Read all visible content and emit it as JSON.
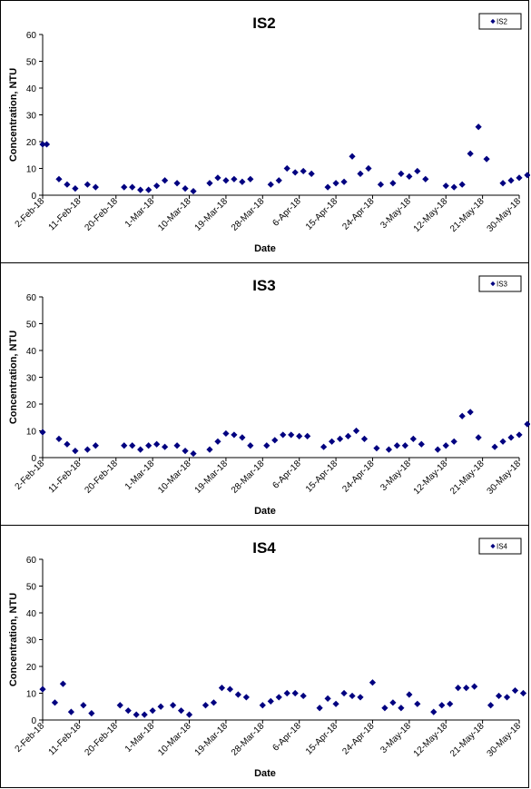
{
  "chart_data": [
    {
      "type": "scatter",
      "title": "IS2",
      "xlabel": "Date",
      "ylabel": "Concentration, NTU",
      "ylim": [
        0,
        60
      ],
      "yticks": [
        "0",
        "10",
        "20",
        "30",
        "40",
        "50",
        "60"
      ],
      "xlim": [
        "2-Feb-18",
        "30-May-18"
      ],
      "xticks": [
        "2-Feb-18",
        "11-Feb-18",
        "20-Feb-18",
        "1-Mar-18",
        "10-Mar-18",
        "19-Mar-18",
        "28-Mar-18",
        "6-Apr-18",
        "15-Apr-18",
        "24-Apr-18",
        "3-May-18",
        "12-May-18",
        "21-May-18",
        "30-May-18"
      ],
      "legend": {
        "position": "top-right",
        "entries": [
          "IS2"
        ]
      },
      "marker_color": "#000080",
      "series": [
        {
          "name": "IS2",
          "points": [
            [
              "2-Feb-18",
              19
            ],
            [
              "3-Feb-18",
              19
            ],
            [
              "6-Feb-18",
              6
            ],
            [
              "8-Feb-18",
              4
            ],
            [
              "10-Feb-18",
              2.5
            ],
            [
              "13-Feb-18",
              4
            ],
            [
              "15-Feb-18",
              3
            ],
            [
              "22-Feb-18",
              3
            ],
            [
              "24-Feb-18",
              3
            ],
            [
              "26-Feb-18",
              2
            ],
            [
              "28-Feb-18",
              2
            ],
            [
              "2-Mar-18",
              3.5
            ],
            [
              "4-Mar-18",
              5.5
            ],
            [
              "7-Mar-18",
              4.5
            ],
            [
              "9-Mar-18",
              2.5
            ],
            [
              "11-Mar-18",
              1.5
            ],
            [
              "15-Mar-18",
              4.5
            ],
            [
              "17-Mar-18",
              6.5
            ],
            [
              "19-Mar-18",
              5.5
            ],
            [
              "21-Mar-18",
              6
            ],
            [
              "23-Mar-18",
              5
            ],
            [
              "25-Mar-18",
              6
            ],
            [
              "30-Mar-18",
              4
            ],
            [
              "1-Apr-18",
              5.5
            ],
            [
              "3-Apr-18",
              10
            ],
            [
              "5-Apr-18",
              8.5
            ],
            [
              "7-Apr-18",
              9
            ],
            [
              "9-Apr-18",
              8
            ],
            [
              "13-Apr-18",
              3
            ],
            [
              "15-Apr-18",
              4.5
            ],
            [
              "17-Apr-18",
              5
            ],
            [
              "19-Apr-18",
              14.5
            ],
            [
              "21-Apr-18",
              8
            ],
            [
              "23-Apr-18",
              10
            ],
            [
              "26-Apr-18",
              4
            ],
            [
              "29-Apr-18",
              4.5
            ],
            [
              "1-May-18",
              8
            ],
            [
              "3-May-18",
              7
            ],
            [
              "5-May-18",
              9
            ],
            [
              "7-May-18",
              6
            ],
            [
              "12-May-18",
              3.5
            ],
            [
              "14-May-18",
              3
            ],
            [
              "16-May-18",
              4
            ],
            [
              "18-May-18",
              15.5
            ],
            [
              "20-May-18",
              25.5
            ],
            [
              "22-May-18",
              13.5
            ],
            [
              "26-May-18",
              4.5
            ],
            [
              "28-May-18",
              5.5
            ],
            [
              "30-May-18",
              6.5
            ],
            [
              "1-Jun-18",
              7.5
            ],
            [
              "3-Jun-18",
              8
            ]
          ]
        }
      ]
    },
    {
      "type": "scatter",
      "title": "IS3",
      "xlabel": "Date",
      "ylabel": "Concentration, NTU",
      "ylim": [
        0,
        60
      ],
      "yticks": [
        "0",
        "10",
        "20",
        "30",
        "40",
        "50",
        "60"
      ],
      "xlim": [
        "2-Feb-18",
        "30-May-18"
      ],
      "xticks": [
        "2-Feb-18",
        "11-Feb-18",
        "20-Feb-18",
        "1-Mar-18",
        "10-Mar-18",
        "19-Mar-18",
        "28-Mar-18",
        "6-Apr-18",
        "15-Apr-18",
        "24-Apr-18",
        "3-May-18",
        "12-May-18",
        "21-May-18",
        "30-May-18"
      ],
      "legend": {
        "position": "top-right",
        "entries": [
          "IS3"
        ]
      },
      "marker_color": "#000080",
      "series": [
        {
          "name": "IS3",
          "points": [
            [
              "2-Feb-18",
              9.5
            ],
            [
              "6-Feb-18",
              7
            ],
            [
              "8-Feb-18",
              5
            ],
            [
              "10-Feb-18",
              2.5
            ],
            [
              "13-Feb-18",
              3
            ],
            [
              "15-Feb-18",
              4.5
            ],
            [
              "22-Feb-18",
              4.5
            ],
            [
              "24-Feb-18",
              4.5
            ],
            [
              "26-Feb-18",
              3
            ],
            [
              "28-Feb-18",
              4.5
            ],
            [
              "2-Mar-18",
              5
            ],
            [
              "4-Mar-18",
              4
            ],
            [
              "7-Mar-18",
              4.5
            ],
            [
              "9-Mar-18",
              2.5
            ],
            [
              "11-Mar-18",
              1.5
            ],
            [
              "15-Mar-18",
              3
            ],
            [
              "17-Mar-18",
              6
            ],
            [
              "19-Mar-18",
              9
            ],
            [
              "21-Mar-18",
              8.5
            ],
            [
              "23-Mar-18",
              7.5
            ],
            [
              "25-Mar-18",
              4.5
            ],
            [
              "29-Mar-18",
              4.5
            ],
            [
              "31-Mar-18",
              6.5
            ],
            [
              "2-Apr-18",
              8.5
            ],
            [
              "4-Apr-18",
              8.5
            ],
            [
              "6-Apr-18",
              8
            ],
            [
              "8-Apr-18",
              8
            ],
            [
              "12-Apr-18",
              4
            ],
            [
              "14-Apr-18",
              6
            ],
            [
              "16-Apr-18",
              7
            ],
            [
              "18-Apr-18",
              8
            ],
            [
              "20-Apr-18",
              10
            ],
            [
              "22-Apr-18",
              7
            ],
            [
              "25-Apr-18",
              3.5
            ],
            [
              "28-Apr-18",
              3
            ],
            [
              "30-Apr-18",
              4.5
            ],
            [
              "2-May-18",
              4.5
            ],
            [
              "4-May-18",
              7
            ],
            [
              "6-May-18",
              5
            ],
            [
              "10-May-18",
              3
            ],
            [
              "12-May-18",
              4.5
            ],
            [
              "14-May-18",
              6
            ],
            [
              "16-May-18",
              15.5
            ],
            [
              "18-May-18",
              17
            ],
            [
              "20-May-18",
              7.5
            ],
            [
              "24-May-18",
              4
            ],
            [
              "26-May-18",
              6
            ],
            [
              "28-May-18",
              7.5
            ],
            [
              "30-May-18",
              8.5
            ],
            [
              "1-Jun-18",
              12.5
            ]
          ]
        }
      ]
    },
    {
      "type": "scatter",
      "title": "IS4",
      "xlabel": "Date",
      "ylabel": "Concentration, NTU",
      "ylim": [
        0,
        60
      ],
      "yticks": [
        "0",
        "10",
        "20",
        "30",
        "40",
        "50",
        "60"
      ],
      "xlim": [
        "2-Feb-18",
        "30-May-18"
      ],
      "xticks": [
        "2-Feb-18",
        "11-Feb-18",
        "20-Feb-18",
        "1-Mar-18",
        "10-Mar-18",
        "19-Mar-18",
        "28-Mar-18",
        "6-Apr-18",
        "15-Apr-18",
        "24-Apr-18",
        "3-May-18",
        "12-May-18",
        "21-May-18",
        "30-May-18"
      ],
      "legend": {
        "position": "top-right",
        "entries": [
          "IS4"
        ]
      },
      "marker_color": "#000080",
      "series": [
        {
          "name": "IS4",
          "points": [
            [
              "2-Feb-18",
              11.5
            ],
            [
              "5-Feb-18",
              6.5
            ],
            [
              "7-Feb-18",
              13.5
            ],
            [
              "9-Feb-18",
              3
            ],
            [
              "12-Feb-18",
              5.5
            ],
            [
              "14-Feb-18",
              2.5
            ],
            [
              "21-Feb-18",
              5.5
            ],
            [
              "23-Feb-18",
              3.5
            ],
            [
              "25-Feb-18",
              2
            ],
            [
              "27-Feb-18",
              2
            ],
            [
              "1-Mar-18",
              3.5
            ],
            [
              "3-Mar-18",
              5
            ],
            [
              "6-Mar-18",
              5.5
            ],
            [
              "8-Mar-18",
              3.5
            ],
            [
              "10-Mar-18",
              2
            ],
            [
              "14-Mar-18",
              5.5
            ],
            [
              "16-Mar-18",
              6.5
            ],
            [
              "18-Mar-18",
              12
            ],
            [
              "20-Mar-18",
              11.5
            ],
            [
              "22-Mar-18",
              9.5
            ],
            [
              "24-Mar-18",
              8.5
            ],
            [
              "28-Mar-18",
              5.5
            ],
            [
              "30-Mar-18",
              7
            ],
            [
              "1-Apr-18",
              8.5
            ],
            [
              "3-Apr-18",
              10
            ],
            [
              "5-Apr-18",
              10
            ],
            [
              "7-Apr-18",
              9
            ],
            [
              "11-Apr-18",
              4.5
            ],
            [
              "13-Apr-18",
              8
            ],
            [
              "15-Apr-18",
              6
            ],
            [
              "17-Apr-18",
              10
            ],
            [
              "19-Apr-18",
              9
            ],
            [
              "21-Apr-18",
              8.5
            ],
            [
              "24-Apr-18",
              14
            ],
            [
              "27-Apr-18",
              4.5
            ],
            [
              "29-Apr-18",
              6.5
            ],
            [
              "1-May-18",
              4.5
            ],
            [
              "3-May-18",
              9.5
            ],
            [
              "5-May-18",
              6
            ],
            [
              "9-May-18",
              3
            ],
            [
              "11-May-18",
              5.5
            ],
            [
              "13-May-18",
              6
            ],
            [
              "15-May-18",
              12
            ],
            [
              "17-May-18",
              12
            ],
            [
              "19-May-18",
              12.5
            ],
            [
              "23-May-18",
              5.5
            ],
            [
              "25-May-18",
              9
            ],
            [
              "27-May-18",
              8.5
            ],
            [
              "29-May-18",
              11
            ],
            [
              "31-May-18",
              10
            ]
          ]
        }
      ]
    }
  ]
}
